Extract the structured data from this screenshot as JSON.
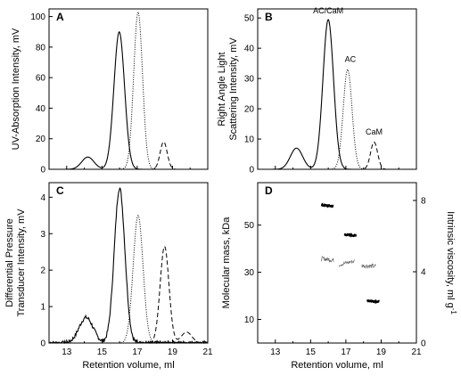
{
  "chart_data": [
    {
      "panel": "A",
      "type": "line",
      "xlabel": "",
      "ylabel": "UV-Absorption Intensity, mV",
      "xlim": [
        12,
        21
      ],
      "ylim": [
        0,
        105
      ],
      "x_ticks": [
        13,
        15,
        17,
        19,
        21
      ],
      "x_tick_labels": [],
      "y_ticks": [
        0,
        20,
        40,
        60,
        80,
        100
      ],
      "y_tick_labels": [
        "0",
        "20",
        "40",
        "60",
        "80",
        "100"
      ],
      "annotations": [],
      "series": [
        {
          "style": "solid",
          "peaks": [
            {
              "center": 14.2,
              "height": 8,
              "width": 0.35
            },
            {
              "center": 15.98,
              "height": 90,
              "width": 0.3
            }
          ]
        },
        {
          "style": "dotted",
          "peaks": [
            {
              "center": 17.05,
              "height": 103,
              "width": 0.25
            }
          ]
        },
        {
          "style": "dashed",
          "peaks": [
            {
              "center": 18.5,
              "height": 18,
              "width": 0.2
            }
          ]
        }
      ]
    },
    {
      "panel": "B",
      "type": "line",
      "xlabel": "",
      "ylabel": "Right Angle Light Scattering Intensity, mV",
      "ylabel_lines": [
        "Right Angle Light",
        "Scattering Intensity, mV"
      ],
      "xlim": [
        12,
        21
      ],
      "ylim": [
        0,
        53
      ],
      "x_ticks": [
        13,
        15,
        17,
        19,
        21
      ],
      "x_tick_labels": [],
      "y_ticks": [
        0,
        10,
        20,
        30,
        40,
        50
      ],
      "y_tick_labels": [
        "0",
        "10",
        "20",
        "30",
        "40",
        "50"
      ],
      "annotations": [
        {
          "text": "AC/CaM",
          "x": 16.0,
          "y": 51.5
        },
        {
          "text": "AC",
          "x": 17.25,
          "y": 35.5
        },
        {
          "text": "CaM",
          "x": 18.6,
          "y": 11.5
        }
      ],
      "series": [
        {
          "style": "solid",
          "peaks": [
            {
              "center": 14.2,
              "height": 7,
              "width": 0.35
            },
            {
              "center": 16.0,
              "height": 49.5,
              "width": 0.3
            }
          ]
        },
        {
          "style": "dotted",
          "peaks": [
            {
              "center": 17.1,
              "height": 33,
              "width": 0.25
            }
          ]
        },
        {
          "style": "dashed",
          "peaks": [
            {
              "center": 18.6,
              "height": 9,
              "width": 0.2
            }
          ]
        }
      ]
    },
    {
      "panel": "C",
      "type": "line",
      "xlabel": "Retention volume, ml",
      "ylabel": "Differential Pressure Transducer Intensity, mV",
      "ylabel_lines": [
        "Differential Pressure",
        "Transducer Intensity, mV"
      ],
      "xlim": [
        12,
        21
      ],
      "ylim": [
        0,
        4.4
      ],
      "x_ticks": [
        13,
        15,
        17,
        19,
        21
      ],
      "x_tick_labels": [
        "13",
        "15",
        "17",
        "19",
        "21"
      ],
      "y_ticks": [
        0,
        1,
        2,
        3,
        4
      ],
      "y_tick_labels": [
        "0",
        "1",
        "2",
        "3",
        "4"
      ],
      "annotations": [],
      "series": [
        {
          "style": "solid",
          "noisy": true,
          "peaks": [
            {
              "center": 14.1,
              "height": 0.7,
              "width": 0.4
            },
            {
              "center": 16.0,
              "height": 4.25,
              "width": 0.3
            }
          ]
        },
        {
          "style": "dotted",
          "peaks": [
            {
              "center": 17.05,
              "height": 3.5,
              "width": 0.28
            }
          ]
        },
        {
          "style": "dashed",
          "peaks": [
            {
              "center": 18.55,
              "height": 2.65,
              "width": 0.25
            },
            {
              "center": 19.8,
              "height": 0.3,
              "width": 0.3
            }
          ]
        }
      ]
    },
    {
      "panel": "D",
      "type": "scatter",
      "xlabel": "Retention volume, ml",
      "ylabel": "Molecular mass, kDa",
      "ylabel_right": "Intrinsic viscosity, ml g-1",
      "xlim": [
        12,
        21
      ],
      "ylim": [
        0,
        68
      ],
      "ylim_right": [
        0,
        9
      ],
      "x_ticks": [
        13,
        15,
        17,
        19,
        21
      ],
      "x_tick_labels": [
        "13",
        "15",
        "17",
        "19",
        "21"
      ],
      "y_ticks": [
        10,
        30,
        50
      ],
      "y_tick_labels": [
        "10",
        "30",
        "50"
      ],
      "y_right_ticks": [
        0,
        4,
        8
      ],
      "y_right_tick_labels": [
        "0",
        "4",
        "8"
      ],
      "annotations": [],
      "molecular_mass_segments": [
        {
          "x": [
            15.6,
            16.3
          ],
          "y": [
            58.5,
            58.0
          ]
        },
        {
          "x": [
            16.9,
            17.6
          ],
          "y": [
            46.0,
            45.5
          ]
        },
        {
          "x": [
            18.2,
            18.9
          ],
          "y": [
            18.0,
            17.5
          ]
        }
      ],
      "viscosity_segments": [
        {
          "x": [
            15.6,
            16.3
          ],
          "y": [
            4.75,
            4.65
          ]
        },
        {
          "x": [
            16.6,
            17.5
          ],
          "y": [
            4.4,
            4.6
          ]
        },
        {
          "x": [
            17.9,
            18.7
          ],
          "y": [
            4.35,
            4.3
          ]
        }
      ]
    }
  ],
  "panel_letters": [
    "A",
    "B",
    "C",
    "D"
  ],
  "axis_titles": {
    "a_y": "UV-Absorption Intensity, mV",
    "b_y1": "Right Angle Light",
    "b_y2": "Scattering Intensity, mV",
    "c_y1": "Differential Pressure",
    "c_y2": "Transducer Intensity, mV",
    "c_x": "Retention volume, ml",
    "d_y": "Molecular mass, kDa",
    "d_y2": "Intrinsic viscosity, ml g",
    "d_y2_sup": "-1",
    "d_x": "Retention volume, ml"
  }
}
